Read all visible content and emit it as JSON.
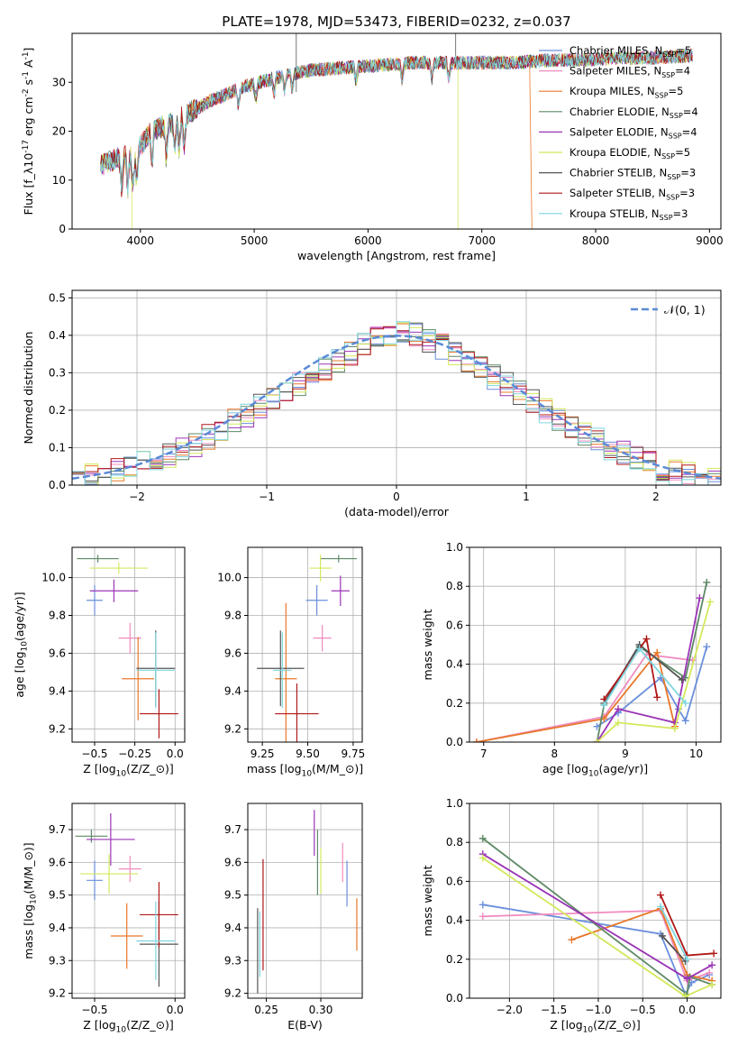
{
  "figure_title": "PLATE=1978, MJD=53473, FIBERID=0232, z=0.037",
  "colors": {
    "Chabrier MILES": "#6a8fdc",
    "Salpeter MILES": "#f08cc0",
    "Kroupa MILES": "#e8782a",
    "Chabrier ELODIE": "#5e8a66",
    "Salpeter ELODIE": "#9b34b6",
    "Kroupa ELODIE": "#d4e85c",
    "Chabrier STELIB": "#555555",
    "Salpeter STELIB": "#b01818",
    "Kroupa STELIB": "#7ed6e0"
  },
  "chart_data": [
    {
      "id": "spectrum",
      "type": "line",
      "xlabel": "wavelength [Angstrom, rest frame]",
      "ylabel": "Flux [f$_\\lambda$10$^{-17}$ erg cm$^{-2}$ s$^{-1}$ A$^{-1}$]",
      "xlim": [
        3400,
        9100
      ],
      "ylim": [
        0,
        40
      ],
      "xticks": [
        4000,
        5000,
        6000,
        7000,
        8000,
        9000
      ],
      "yticks": [
        0,
        10,
        20,
        30
      ],
      "grid": false,
      "legend_position": "top-right",
      "data_x_range": [
        3650,
        8850
      ],
      "continuum": {
        "x": [
          3650,
          3800,
          3950,
          4100,
          4300,
          4600,
          4900,
          5200,
          5500,
          5800,
          6100,
          6400,
          6700,
          7000,
          7300,
          7600,
          7900,
          8200,
          8500,
          8850
        ],
        "y": [
          13,
          14.5,
          15.5,
          20,
          22,
          26,
          29,
          31,
          32.5,
          33,
          33.5,
          34,
          34,
          34,
          34,
          34.5,
          34.5,
          35,
          35,
          35.5
        ]
      },
      "series": [
        {
          "name": "Chabrier MILES, N$_{SSP}$=5",
          "color_key": "Chabrier MILES"
        },
        {
          "name": "Salpeter MILES, N$_{SSP}$=4",
          "color_key": "Salpeter MILES"
        },
        {
          "name": "Kroupa MILES, N$_{SSP}$=5",
          "color_key": "Kroupa MILES"
        },
        {
          "name": "Chabrier ELODIE, N$_{SSP}$=4",
          "color_key": "Chabrier ELODIE"
        },
        {
          "name": "Salpeter ELODIE, N$_{SSP}$=4",
          "color_key": "Salpeter ELODIE"
        },
        {
          "name": "Kroupa ELODIE, N$_{SSP}$=5",
          "color_key": "Kroupa ELODIE"
        },
        {
          "name": "Chabrier STELIB, N$_{SSP}$=3",
          "color_key": "Chabrier STELIB"
        },
        {
          "name": "Salpeter STELIB, N$_{SSP}$=3",
          "color_key": "Salpeter STELIB"
        },
        {
          "name": "Kroupa STELIB, N$_{SSP}$=3",
          "color_key": "Kroupa STELIB"
        }
      ]
    },
    {
      "id": "residuals",
      "type": "histogram",
      "xlabel": "(data-model)/error",
      "ylabel": "Normed distribution",
      "xlim": [
        -2.5,
        2.5
      ],
      "ylim": [
        0,
        0.52
      ],
      "xticks": [
        -2,
        -1,
        0,
        1,
        2
      ],
      "yticks": [
        0.0,
        0.1,
        0.2,
        0.3,
        0.4,
        0.5
      ],
      "grid": true,
      "legend_position": "top-right",
      "legend": "$\\mathcal{N}(0, 1)$",
      "reference_curve": "gaussian mean 0 sigma 1",
      "bin_width": 0.1,
      "bin_range": [
        -2.5,
        2.5
      ],
      "base_counts": [
        0.02,
        0.025,
        0.03,
        0.04,
        0.05,
        0.06,
        0.07,
        0.08,
        0.095,
        0.11,
        0.13,
        0.15,
        0.17,
        0.19,
        0.21,
        0.23,
        0.25,
        0.27,
        0.29,
        0.31,
        0.33,
        0.35,
        0.37,
        0.39,
        0.405,
        0.41,
        0.4,
        0.385,
        0.37,
        0.35,
        0.33,
        0.31,
        0.29,
        0.27,
        0.25,
        0.225,
        0.2,
        0.18,
        0.16,
        0.14,
        0.12,
        0.1,
        0.085,
        0.07,
        0.055,
        0.045,
        0.035,
        0.028,
        0.02,
        0.015
      ]
    },
    {
      "id": "age-vs-Z",
      "type": "scatter",
      "xlabel": "Z [log$_{10}$($Z/Z_\\odot$)]",
      "ylabel": "age  [log$_{10}$($age/yr$)]",
      "xlim": [
        -0.64,
        0.06
      ],
      "ylim": [
        9.13,
        10.16
      ],
      "xticks": [
        -0.5,
        -0.25,
        0.0
      ],
      "xticklabels": [
        "−0.5",
        "−0.25",
        "0.0"
      ],
      "yticks": [
        9.2,
        9.4,
        9.6,
        9.8,
        10.0
      ],
      "grid": true,
      "points": [
        {
          "key": "Chabrier MILES",
          "x": -0.5,
          "y": 9.88,
          "xerr": 0.05,
          "yerr": 0.08
        },
        {
          "key": "Salpeter MILES",
          "x": -0.28,
          "y": 9.68,
          "xerr": 0.07,
          "yerr": 0.08
        },
        {
          "key": "Kroupa MILES",
          "x": -0.23,
          "y": 9.465,
          "xerr": 0.1,
          "yerr": 0.22
        },
        {
          "key": "Chabrier ELODIE",
          "x": -0.48,
          "y": 10.1,
          "xerr": 0.13,
          "yerr": 0.02
        },
        {
          "key": "Salpeter ELODIE",
          "x": -0.38,
          "y": 9.93,
          "xerr": 0.15,
          "yerr": 0.06
        },
        {
          "key": "Kroupa ELODIE",
          "x": -0.35,
          "y": 10.05,
          "xerr": 0.18,
          "yerr": 0.03
        },
        {
          "key": "Chabrier STELIB",
          "x": -0.12,
          "y": 9.52,
          "xerr": 0.12,
          "yerr": 0.2
        },
        {
          "key": "Salpeter STELIB",
          "x": -0.1,
          "y": 9.28,
          "xerr": 0.12,
          "yerr": 0.13
        },
        {
          "key": "Kroupa STELIB",
          "x": -0.12,
          "y": 9.51,
          "xerr": 0.12,
          "yerr": 0.2
        }
      ]
    },
    {
      "id": "age-vs-mass",
      "type": "scatter",
      "xlabel": "mass [log$_{10}$($M/M_\\odot$)]",
      "xlim": [
        9.17,
        9.8
      ],
      "ylim": [
        9.13,
        10.16
      ],
      "xticks": [
        9.25,
        9.5,
        9.75
      ],
      "yticks": [
        9.2,
        9.4,
        9.6,
        9.8,
        10.0
      ],
      "grid": true,
      "points": [
        {
          "key": "Chabrier MILES",
          "x": 9.55,
          "y": 9.88,
          "xerr": 0.06,
          "yerr": 0.08
        },
        {
          "key": "Salpeter MILES",
          "x": 9.58,
          "y": 9.68,
          "xerr": 0.05,
          "yerr": 0.07
        },
        {
          "key": "Kroupa MILES",
          "x": 9.38,
          "y": 9.465,
          "xerr": 0.06,
          "yerr": 0.4
        },
        {
          "key": "Chabrier ELODIE",
          "x": 9.67,
          "y": 10.1,
          "xerr": 0.1,
          "yerr": 0.02
        },
        {
          "key": "Salpeter ELODIE",
          "x": 9.68,
          "y": 9.93,
          "xerr": 0.05,
          "yerr": 0.08
        },
        {
          "key": "Kroupa ELODIE",
          "x": 9.57,
          "y": 10.05,
          "xerr": 0.06,
          "yerr": 0.07
        },
        {
          "key": "Chabrier STELIB",
          "x": 9.35,
          "y": 9.52,
          "xerr": 0.13,
          "yerr": 0.2
        },
        {
          "key": "Salpeter STELIB",
          "x": 9.44,
          "y": 9.28,
          "xerr": 0.12,
          "yerr": 0.16
        },
        {
          "key": "Kroupa STELIB",
          "x": 9.36,
          "y": 9.51,
          "xerr": 0.05,
          "yerr": 0.2
        }
      ]
    },
    {
      "id": "weight-vs-age",
      "type": "line",
      "xlabel": "age  [log$_{10}$($age/yr$)]",
      "ylabel": "mass weight",
      "xlim": [
        6.8,
        10.35
      ],
      "ylim": [
        0,
        1.0
      ],
      "xticks": [
        7,
        8,
        9,
        10
      ],
      "yticks": [
        0.0,
        0.2,
        0.4,
        0.6,
        0.8,
        1.0
      ],
      "grid": true,
      "series": [
        {
          "key": "Chabrier MILES",
          "x": [
            8.6,
            8.9,
            9.5,
            9.75,
            9.85,
            10.15
          ],
          "y": [
            0.08,
            0.15,
            0.33,
            0.17,
            0.11,
            0.49
          ]
        },
        {
          "key": "Salpeter MILES",
          "x": [
            6.9,
            8.7,
            9.3,
            9.95
          ],
          "y": [
            0.0,
            0.13,
            0.45,
            0.42
          ]
        },
        {
          "key": "Kroupa MILES",
          "x": [
            6.9,
            8.7,
            9.45,
            9.7
          ],
          "y": [
            0.0,
            0.12,
            0.46,
            0.08
          ]
        },
        {
          "key": "Chabrier ELODIE",
          "x": [
            8.6,
            8.7,
            9.2,
            9.85,
            10.15
          ],
          "y": [
            0.0,
            0.19,
            0.49,
            0.33,
            0.82
          ]
        },
        {
          "key": "Salpeter ELODIE",
          "x": [
            8.6,
            8.9,
            9.7,
            10.05
          ],
          "y": [
            0.0,
            0.17,
            0.1,
            0.74
          ]
        },
        {
          "key": "Kroupa ELODIE",
          "x": [
            8.6,
            8.9,
            9.7,
            10.2
          ],
          "y": [
            0.0,
            0.1,
            0.07,
            0.72
          ]
        },
        {
          "key": "Chabrier STELIB",
          "x": [
            8.7,
            9.2,
            9.8
          ],
          "y": [
            0.2,
            0.5,
            0.32
          ]
        },
        {
          "key": "Salpeter STELIB",
          "x": [
            8.7,
            9.3,
            9.45
          ],
          "y": [
            0.22,
            0.53,
            0.23
          ]
        },
        {
          "key": "Kroupa STELIB",
          "x": [
            8.7,
            9.2,
            9.85
          ],
          "y": [
            0.19,
            0.48,
            0.2
          ]
        }
      ]
    },
    {
      "id": "mass-vs-Z",
      "type": "scatter",
      "xlabel": "Z [log$_{10}$($Z/Z_\\odot$)]",
      "ylabel": "mass [log$_{10}$($M/M_\\odot$)]",
      "xlim": [
        -0.64,
        0.06
      ],
      "ylim": [
        9.185,
        9.78
      ],
      "xticks": [
        -0.5,
        0.0
      ],
      "xticklabels": [
        "−0.5",
        "0.0"
      ],
      "yticks": [
        9.2,
        9.3,
        9.4,
        9.5,
        9.6,
        9.7
      ],
      "grid": true,
      "points": [
        {
          "key": "Chabrier MILES",
          "x": -0.5,
          "y": 9.545,
          "xerr": 0.05,
          "yerr": 0.06
        },
        {
          "key": "Salpeter MILES",
          "x": -0.28,
          "y": 9.58,
          "xerr": 0.07,
          "yerr": 0.04
        },
        {
          "key": "Kroupa MILES",
          "x": -0.3,
          "y": 9.375,
          "xerr": 0.1,
          "yerr": 0.1
        },
        {
          "key": "Chabrier ELODIE",
          "x": -0.52,
          "y": 9.68,
          "xerr": 0.1,
          "yerr": 0.02
        },
        {
          "key": "Salpeter ELODIE",
          "x": -0.4,
          "y": 9.67,
          "xerr": 0.15,
          "yerr": 0.08
        },
        {
          "key": "Kroupa ELODIE",
          "x": -0.41,
          "y": 9.565,
          "xerr": 0.18,
          "yerr": 0.06
        },
        {
          "key": "Chabrier STELIB",
          "x": -0.1,
          "y": 9.35,
          "xerr": 0.12,
          "yerr": 0.13
        },
        {
          "key": "Salpeter STELIB",
          "x": -0.1,
          "y": 9.44,
          "xerr": 0.12,
          "yerr": 0.1
        },
        {
          "key": "Kroupa STELIB",
          "x": -0.12,
          "y": 9.36,
          "xerr": 0.12,
          "yerr": 0.12
        }
      ]
    },
    {
      "id": "mass-vs-EBV",
      "type": "scatter",
      "xlabel": "E(B-V)",
      "xlim": [
        0.233,
        0.338
      ],
      "ylim": [
        9.185,
        9.78
      ],
      "xticks": [
        0.25,
        0.3
      ],
      "yticks": [
        9.2,
        9.3,
        9.4,
        9.5,
        9.6,
        9.7
      ],
      "grid": true,
      "points": [
        {
          "key": "Chabrier MILES",
          "x": 0.324,
          "y": 9.535,
          "yerr": 0.07
        },
        {
          "key": "Salpeter MILES",
          "x": 0.32,
          "y": 9.6,
          "yerr": 0.06
        },
        {
          "key": "Kroupa MILES",
          "x": 0.333,
          "y": 9.41,
          "yerr": 0.08
        },
        {
          "key": "Chabrier ELODIE",
          "x": 0.297,
          "y": 9.6,
          "yerr": 0.1
        },
        {
          "key": "Salpeter ELODIE",
          "x": 0.294,
          "y": 9.69,
          "yerr": 0.07
        },
        {
          "key": "Kroupa ELODIE",
          "x": 0.3,
          "y": 9.575,
          "yerr": 0.07
        },
        {
          "key": "Chabrier STELIB",
          "x": 0.242,
          "y": 9.33,
          "yerr": 0.13
        },
        {
          "key": "Salpeter STELIB",
          "x": 0.247,
          "y": 9.44,
          "yerr": 0.17
        },
        {
          "key": "Kroupa STELIB",
          "x": 0.244,
          "y": 9.35,
          "yerr": 0.1
        }
      ]
    },
    {
      "id": "weight-vs-Z",
      "type": "line",
      "xlabel": "Z [log$_{10}$($Z/Z_\\odot$)]",
      "ylabel": "mass weight",
      "xlim": [
        -2.45,
        0.38
      ],
      "ylim": [
        0,
        1.0
      ],
      "xticks": [
        -2.0,
        -1.5,
        -1.0,
        -0.5,
        0.0
      ],
      "xticklabels": [
        "−2.0",
        "−1.5",
        "−1.0",
        "−0.5",
        "0.0"
      ],
      "yticks": [
        0.0,
        0.2,
        0.4,
        0.6,
        0.8,
        1.0
      ],
      "grid": true,
      "series": [
        {
          "key": "Chabrier MILES",
          "x": [
            -2.3,
            -0.3,
            -0.02,
            0.05,
            0.25
          ],
          "y": [
            0.48,
            0.33,
            0.02,
            0.08,
            0.12
          ]
        },
        {
          "key": "Salpeter MILES",
          "x": [
            -2.3,
            -0.3,
            0.0,
            0.25
          ],
          "y": [
            0.42,
            0.45,
            0.09,
            0.13
          ]
        },
        {
          "key": "Kroupa MILES",
          "x": [
            -1.3,
            -0.3,
            0.0,
            0.28
          ],
          "y": [
            0.3,
            0.46,
            0.12,
            0.09
          ]
        },
        {
          "key": "Chabrier ELODIE",
          "x": [
            -2.3,
            0.0,
            0.03,
            0.28
          ],
          "y": [
            0.82,
            0.02,
            0.11,
            0.07
          ]
        },
        {
          "key": "Salpeter ELODIE",
          "x": [
            -2.3,
            0.0,
            0.28
          ],
          "y": [
            0.74,
            0.1,
            0.17
          ]
        },
        {
          "key": "Kroupa ELODIE",
          "x": [
            -2.3,
            -0.02,
            0.28
          ],
          "y": [
            0.72,
            0.01,
            0.07
          ]
        },
        {
          "key": "Chabrier STELIB",
          "x": [
            -0.28,
            -0.02
          ],
          "y": [
            0.32,
            0.19
          ]
        },
        {
          "key": "Salpeter STELIB",
          "x": [
            -0.3,
            0.0,
            0.3
          ],
          "y": [
            0.53,
            0.22,
            0.23
          ]
        },
        {
          "key": "Kroupa STELIB",
          "x": [
            -0.3,
            0.0
          ],
          "y": [
            0.47,
            0.2
          ]
        }
      ]
    }
  ]
}
